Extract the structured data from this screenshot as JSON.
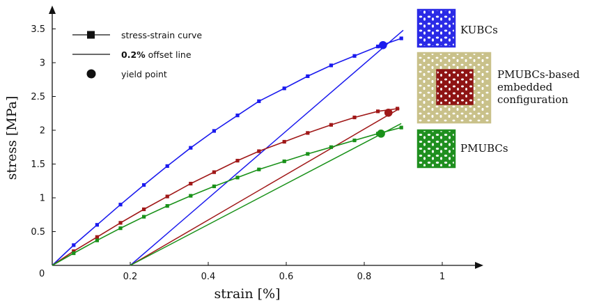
{
  "chart_data": {
    "type": "line",
    "xlabel": "strain [%]",
    "ylabel": "stress [MPa]",
    "xlim": [
      0,
      1.08
    ],
    "ylim": [
      0,
      3.7
    ],
    "x_ticks": [
      0.2,
      0.4,
      0.6,
      0.8,
      1
    ],
    "x_tick_labels": [
      "0.2",
      "0.4",
      "0.6",
      "0.8",
      "1"
    ],
    "y_ticks": [
      0.5,
      1,
      1.5,
      2,
      2.5,
      3,
      3.5
    ],
    "y_tick_labels": [
      "0.5",
      "1",
      "1.5",
      "2",
      "2.5",
      "3",
      "3.5"
    ],
    "origin_label": "0",
    "grid": false,
    "legend": [
      {
        "marker": "square",
        "label": "stress-strain curve"
      },
      {
        "marker": "line",
        "label_bold": "0.2%",
        "label": " offset line"
      },
      {
        "marker": "circle",
        "label": "yield point"
      }
    ],
    "series": [
      {
        "name": "KUBCs",
        "color": "#1a1aee",
        "x": [
          0,
          0.055,
          0.115,
          0.175,
          0.235,
          0.295,
          0.355,
          0.415,
          0.475,
          0.53,
          0.595,
          0.655,
          0.715,
          0.775,
          0.835,
          0.895
        ],
        "y": [
          0,
          0.3,
          0.6,
          0.9,
          1.19,
          1.47,
          1.74,
          1.99,
          2.22,
          2.43,
          2.62,
          2.8,
          2.96,
          3.1,
          3.24,
          3.36
        ],
        "offset_line": {
          "x": [
            0.2,
            0.9
          ],
          "y": [
            0,
            3.48
          ]
        },
        "yield_point": {
          "x": 0.848,
          "y": 3.26
        }
      },
      {
        "name": "PMUBCs-based embedded configuration",
        "color": "#a01818",
        "x": [
          0,
          0.055,
          0.115,
          0.175,
          0.235,
          0.295,
          0.355,
          0.415,
          0.475,
          0.53,
          0.595,
          0.655,
          0.715,
          0.775,
          0.835,
          0.885
        ],
        "y": [
          0,
          0.21,
          0.42,
          0.63,
          0.83,
          1.02,
          1.21,
          1.38,
          1.55,
          1.69,
          1.83,
          1.96,
          2.08,
          2.19,
          2.28,
          2.32
        ],
        "offset_line": {
          "x": [
            0.2,
            0.89
          ],
          "y": [
            0,
            2.32
          ]
        },
        "yield_point": {
          "x": 0.862,
          "y": 2.26
        }
      },
      {
        "name": "PMUBCs",
        "color": "#199119",
        "x": [
          0,
          0.055,
          0.115,
          0.175,
          0.235,
          0.295,
          0.355,
          0.415,
          0.475,
          0.53,
          0.595,
          0.655,
          0.715,
          0.775,
          0.835,
          0.895
        ],
        "y": [
          0,
          0.18,
          0.37,
          0.55,
          0.72,
          0.88,
          1.03,
          1.17,
          1.3,
          1.42,
          1.54,
          1.65,
          1.75,
          1.85,
          1.95,
          2.04
        ],
        "offset_line": {
          "x": [
            0.2,
            0.895
          ],
          "y": [
            0,
            2.1
          ]
        },
        "yield_point": {
          "x": 0.843,
          "y": 1.95
        }
      }
    ]
  },
  "side_labels": {
    "kubcs": [
      "KUBCs"
    ],
    "embedded": [
      "PMUBCs-based",
      "embedded",
      "configuration"
    ],
    "pmubcs": [
      "PMUBCs"
    ]
  },
  "thumbnail_colors": {
    "kubcs": "#2a2ae6",
    "embedded_outer": "#c9c18a",
    "embedded_inner": "#8e1414",
    "pmubcs": "#1f8f1f"
  }
}
